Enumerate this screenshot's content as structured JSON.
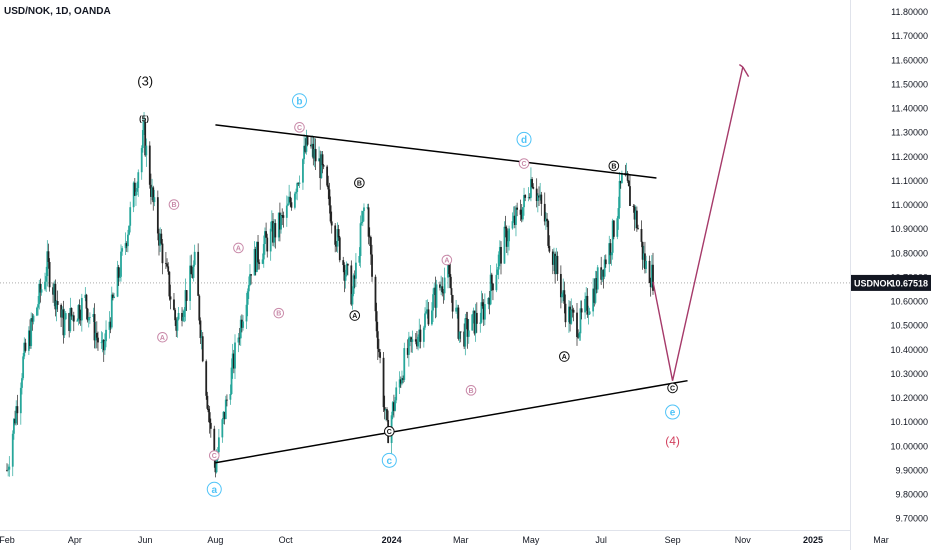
{
  "header": {
    "symbol_line": "USD/NOK, 1D, OANDA"
  },
  "price_tag": {
    "symbol": "USDNOK",
    "value": "10.67518"
  },
  "colors": {
    "up": "#26a69a",
    "down": "#222222",
    "line": "#000000",
    "projection": "#a63a6a",
    "label_cyan": "#4fc3f7",
    "label_dark": "#111111",
    "label_pink": "#c98aa9",
    "label_red": "#d2425f"
  },
  "chart_data": {
    "type": "candlestick",
    "title": "USD/NOK, 1D, OANDA",
    "ylim": [
      9.65,
      11.85
    ],
    "y_ticks": [
      "11.80000",
      "11.70000",
      "11.60000",
      "11.50000",
      "11.40000",
      "11.30000",
      "11.20000",
      "11.10000",
      "11.00000",
      "10.90000",
      "10.80000",
      "10.70000",
      "10.60000",
      "10.50000",
      "10.40000",
      "10.30000",
      "10.20000",
      "10.10000",
      "10.00000",
      "9.90000",
      "9.80000",
      "9.70000"
    ],
    "x_ticks": [
      {
        "label": "Feb",
        "date": "2023-02-01"
      },
      {
        "label": "Apr",
        "date": "2023-04-01"
      },
      {
        "label": "Jun",
        "date": "2023-06-01"
      },
      {
        "label": "Aug",
        "date": "2023-08-01"
      },
      {
        "label": "Oct",
        "date": "2023-10-01"
      },
      {
        "label": "2024",
        "date": "2024-01-01"
      },
      {
        "label": "Mar",
        "date": "2024-03-01"
      },
      {
        "label": "May",
        "date": "2024-05-01"
      },
      {
        "label": "Jul",
        "date": "2024-07-01"
      },
      {
        "label": "Sep",
        "date": "2024-09-01"
      },
      {
        "label": "Nov",
        "date": "2024-11-01"
      },
      {
        "label": "2025",
        "date": "2025-01-01"
      },
      {
        "label": "Mar",
        "date": "2025-03-01"
      }
    ],
    "last_price": 10.67518,
    "price_path": [
      [
        "2023-02-01",
        9.9
      ],
      [
        "2023-02-15",
        10.35
      ],
      [
        "2023-03-08",
        10.75
      ],
      [
        "2023-03-22",
        10.5
      ],
      [
        "2023-04-10",
        10.6
      ],
      [
        "2023-04-25",
        10.38
      ],
      [
        "2023-05-15",
        10.85
      ],
      [
        "2023-05-31",
        11.29
      ],
      [
        "2023-06-08",
        11.0
      ],
      [
        "2023-06-28",
        10.5
      ],
      [
        "2023-07-14",
        10.75
      ],
      [
        "2023-07-28",
        10.05
      ],
      [
        "2023-08-01",
        9.92
      ],
      [
        "2023-08-15",
        10.3
      ],
      [
        "2023-09-01",
        10.75
      ],
      [
        "2023-09-15",
        10.85
      ],
      [
        "2023-10-01",
        10.95
      ],
      [
        "2023-10-20",
        11.25
      ],
      [
        "2023-11-01",
        11.15
      ],
      [
        "2023-11-15",
        10.85
      ],
      [
        "2023-11-28",
        10.62
      ],
      [
        "2023-12-10",
        11.05
      ],
      [
        "2023-12-15",
        10.7
      ],
      [
        "2023-12-28",
        10.05
      ],
      [
        "2024-01-12",
        10.35
      ],
      [
        "2024-02-01",
        10.55
      ],
      [
        "2024-02-18",
        10.72
      ],
      [
        "2024-03-01",
        10.45
      ],
      [
        "2024-03-20",
        10.55
      ],
      [
        "2024-04-08",
        10.85
      ],
      [
        "2024-04-25",
        11.0
      ],
      [
        "2024-05-02",
        11.12
      ],
      [
        "2024-05-15",
        10.9
      ],
      [
        "2024-06-01",
        10.55
      ],
      [
        "2024-06-12",
        10.5
      ],
      [
        "2024-06-25",
        10.65
      ],
      [
        "2024-07-10",
        10.85
      ],
      [
        "2024-07-20",
        11.12
      ],
      [
        "2024-07-31",
        10.95
      ],
      [
        "2024-08-08",
        10.75
      ],
      [
        "2024-08-15",
        10.7
      ]
    ],
    "trendlines": [
      {
        "name": "upper",
        "from": [
          "2023-08-01",
          11.33
        ],
        "to": [
          "2024-08-18",
          11.11
        ]
      },
      {
        "name": "lower",
        "from": [
          "2023-08-01",
          9.93
        ],
        "to": [
          "2024-09-14",
          10.27
        ]
      }
    ],
    "projection": [
      [
        "2024-08-15",
        10.68
      ],
      [
        "2024-09-01",
        10.27
      ],
      [
        "2024-11-01",
        11.57
      ]
    ],
    "projection_arrow": {
      "tail": [
        "2024-10-25",
        11.46
      ],
      "heads": [
        [
          "2024-10-29",
          11.58
        ],
        [
          "2024-11-06",
          11.53
        ]
      ]
    },
    "labels": [
      {
        "text": "(3)",
        "date": "2023-06-01",
        "price": 11.51,
        "color": "label_dark",
        "style": "plain",
        "size": 13
      },
      {
        "text": "(5)",
        "date": "2023-05-31",
        "price": 11.36,
        "color": "label_dark",
        "style": "plain",
        "size": 8
      },
      {
        "text": "B",
        "date": "2023-06-26",
        "price": 11.0,
        "color": "label_pink",
        "style": "circle"
      },
      {
        "text": "A",
        "date": "2023-06-16",
        "price": 10.45,
        "color": "label_pink",
        "style": "circle"
      },
      {
        "text": "A",
        "date": "2023-08-21",
        "price": 10.82,
        "color": "label_pink",
        "style": "circle"
      },
      {
        "text": "B",
        "date": "2023-09-25",
        "price": 10.55,
        "color": "label_pink",
        "style": "circle"
      },
      {
        "text": "C",
        "date": "2023-07-31",
        "price": 9.96,
        "color": "label_pink",
        "style": "circle"
      },
      {
        "text": "a",
        "date": "2023-07-31",
        "price": 9.82,
        "color": "label_cyan",
        "style": "circle_big"
      },
      {
        "text": "b",
        "date": "2023-10-13",
        "price": 11.43,
        "color": "label_cyan",
        "style": "circle_big"
      },
      {
        "text": "C",
        "date": "2023-10-13",
        "price": 11.32,
        "color": "label_pink",
        "style": "circle_dark"
      },
      {
        "text": "B",
        "date": "2023-12-04",
        "price": 11.09,
        "color": "label_dark",
        "style": "circle"
      },
      {
        "text": "A",
        "date": "2023-11-30",
        "price": 10.54,
        "color": "label_dark",
        "style": "circle"
      },
      {
        "text": "C",
        "date": "2023-12-30",
        "price": 10.06,
        "color": "label_dark",
        "style": "circle"
      },
      {
        "text": "c",
        "date": "2023-12-30",
        "price": 9.94,
        "color": "label_cyan",
        "style": "circle_big"
      },
      {
        "text": "A",
        "date": "2024-02-18",
        "price": 10.77,
        "color": "label_pink",
        "style": "circle"
      },
      {
        "text": "B",
        "date": "2024-03-10",
        "price": 10.23,
        "color": "label_pink",
        "style": "circle"
      },
      {
        "text": "d",
        "date": "2024-04-25",
        "price": 11.27,
        "color": "label_cyan",
        "style": "circle_big"
      },
      {
        "text": "C",
        "date": "2024-04-25",
        "price": 11.17,
        "color": "label_pink",
        "style": "circle_dark"
      },
      {
        "text": "A",
        "date": "2024-05-30",
        "price": 10.37,
        "color": "label_dark",
        "style": "circle"
      },
      {
        "text": "B",
        "date": "2024-07-12",
        "price": 11.16,
        "color": "label_dark",
        "style": "circle"
      },
      {
        "text": "C",
        "date": "2024-09-01",
        "price": 10.24,
        "color": "label_dark",
        "style": "circle"
      },
      {
        "text": "e",
        "date": "2024-09-01",
        "price": 10.14,
        "color": "label_cyan",
        "style": "circle_big"
      },
      {
        "text": "(4)",
        "date": "2024-09-01",
        "price": 10.02,
        "color": "label_red",
        "style": "plain",
        "size": 12
      }
    ]
  }
}
